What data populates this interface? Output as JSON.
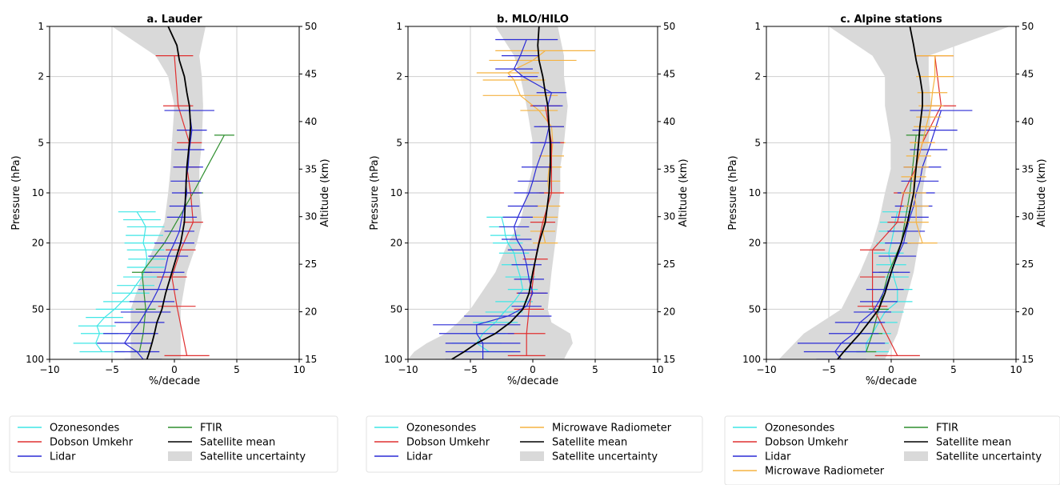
{
  "colors": {
    "Ozonesondes": "#3fe6e6",
    "Dobson Umkehr": "#e03030",
    "Lidar": "#2b2bd6",
    "FTIR": "#2f8f2f",
    "Microwave Radiometer": "#f5b342",
    "Satellite mean": "#000000",
    "Satellite uncertainty": "#d9d9d9"
  },
  "chart_data": [
    {
      "type": "line",
      "title": "a. Lauder",
      "xlabel": "%/decade",
      "ylabel": "Pressure (hPa)",
      "y2label": "Altitude (km)",
      "xlim": [
        -10,
        10
      ],
      "ylim": [
        100,
        1
      ],
      "yscale": "log",
      "xticks": [
        "−10",
        "−5",
        "0",
        "5",
        "10"
      ],
      "yticks": [
        "1",
        "2",
        "5",
        "10",
        "20",
        "50",
        "100"
      ],
      "y2ticks": [
        "50",
        "45",
        "40",
        "35",
        "30",
        "25",
        "20",
        "15"
      ],
      "grid": true,
      "legend": {
        "entries": [
          "Ozonesondes",
          "FTIR",
          "Dobson Umkehr",
          "Satellite mean",
          "Lidar",
          "Satellite uncertainty"
        ],
        "columns": 2,
        "placement": "bottom"
      },
      "uncertainty": {
        "p": [
          1,
          1.5,
          2,
          3,
          5,
          7,
          10,
          15,
          20,
          30,
          50,
          70,
          100
        ],
        "lo": [
          -5,
          -1.5,
          -0.5,
          0,
          -0.2,
          -0.3,
          -0.5,
          -0.8,
          -1.5,
          -2.5,
          -3.5,
          -3.5,
          -3.5
        ],
        "hi": [
          2.5,
          2.0,
          2.2,
          2.3,
          2.2,
          2.0,
          2.0,
          2.2,
          1.8,
          1.0,
          0.5,
          0.5,
          0.5
        ]
      },
      "series": [
        {
          "name": "Ozonesondes",
          "p": [
            13,
            14.5,
            16,
            18,
            20,
            22,
            25,
            28,
            32,
            36,
            40,
            45,
            50,
            56,
            63,
            70,
            80,
            90
          ],
          "x": [
            -3,
            -2.6,
            -2.3,
            -2.4,
            -2.5,
            -2.3,
            -2.2,
            -2.3,
            -2.6,
            -3.1,
            -3.5,
            -4.2,
            -4.8,
            -5.6,
            -6.2,
            -6.0,
            -6.3,
            -5.8
          ],
          "err": [
            1.5,
            1.5,
            1.5,
            1.5,
            1.5,
            1.5,
            1.5,
            1.5,
            1.5,
            1.5,
            1.5,
            1.5,
            1.5,
            1.5,
            1.5,
            1.5,
            1.8,
            1.8
          ]
        },
        {
          "name": "FTIR",
          "p": [
            4.5,
            10,
            20,
            30,
            50,
            70,
            90
          ],
          "x": [
            4.0,
            1.5,
            -0.8,
            -2.6,
            -2.3,
            -2.5,
            -2.8
          ],
          "err": [
            0.8,
            0.8,
            0.8,
            0.8,
            0.8,
            0.8,
            0.8
          ]
        },
        {
          "name": "Dobson Umkehr",
          "p": [
            1.5,
            3,
            5,
            7,
            10,
            15,
            22,
            32,
            48,
            95
          ],
          "x": [
            0,
            0.3,
            1.2,
            1.0,
            1.3,
            1.5,
            0.5,
            -0.2,
            0.2,
            1.0
          ],
          "err": [
            1.5,
            1.2,
            1.0,
            1.0,
            0.8,
            0.8,
            1.2,
            1.2,
            1.5,
            1.8
          ]
        },
        {
          "name": "Lidar",
          "p": [
            3.2,
            4.2,
            5.5,
            7,
            8.5,
            10,
            12,
            14,
            17,
            20,
            24,
            30,
            38,
            45,
            52,
            60,
            70,
            80,
            90,
            100
          ],
          "x": [
            1.2,
            1.4,
            1.2,
            1.1,
            0.9,
            1.0,
            0.8,
            0.6,
            0.4,
            0,
            -0.5,
            -0.8,
            -1.3,
            -1.8,
            -2.3,
            -2.8,
            -3.5,
            -4.0,
            -3.0,
            -2.5
          ],
          "err": [
            2.0,
            1.2,
            1.2,
            1.2,
            1.2,
            1.2,
            1.2,
            1.2,
            1.2,
            1.6,
            1.6,
            1.6,
            1.6,
            1.8,
            2.0,
            2.0,
            2.2,
            2.2,
            1.8,
            1.5
          ]
        },
        {
          "name": "Satellite mean",
          "p": [
            1,
            1.3,
            1.6,
            2,
            2.5,
            3,
            4,
            5,
            7,
            10,
            15,
            20,
            30,
            40,
            50,
            60,
            70,
            80,
            90,
            100
          ],
          "x": [
            -0.5,
            0.2,
            0.4,
            0.8,
            1.0,
            1.2,
            1.3,
            1.2,
            1.0,
            0.9,
            0.8,
            0.5,
            -0.2,
            -0.7,
            -1.0,
            -1.4,
            -1.6,
            -1.8,
            -2.0,
            -2.2
          ],
          "err": []
        }
      ]
    },
    {
      "type": "line",
      "title": "b. MLO/HILO",
      "xlabel": "%/decade",
      "ylabel": "Pressure (hPa)",
      "y2label": "Altitude (km)",
      "xlim": [
        -10,
        10
      ],
      "ylim": [
        100,
        1
      ],
      "yscale": "log",
      "xticks": [
        "−10",
        "−5",
        "0",
        "5",
        "10"
      ],
      "yticks": [
        "1",
        "2",
        "5",
        "10",
        "20",
        "50",
        "100"
      ],
      "y2ticks": [
        "50",
        "45",
        "40",
        "35",
        "30",
        "25",
        "20",
        "15"
      ],
      "grid": true,
      "legend": {
        "entries": [
          "Ozonesondes",
          "Microwave Radiometer",
          "Dobson Umkehr",
          "Satellite mean",
          "Lidar",
          "Satellite uncertainty"
        ],
        "columns": 2,
        "placement": "bottom"
      },
      "uncertainty": {
        "p": [
          1,
          1.5,
          2,
          3,
          5,
          7,
          10,
          15,
          20,
          30,
          50,
          60,
          70,
          80,
          90,
          100
        ],
        "lo": [
          -3,
          -1.5,
          -1.0,
          -0.5,
          0,
          0,
          -0.5,
          -1.0,
          -2.0,
          -3.0,
          -5.0,
          -6.0,
          -7.0,
          -8.5,
          -9.5,
          -10
        ],
        "hi": [
          2.0,
          2.5,
          2.5,
          2.8,
          2.5,
          2.2,
          2.2,
          2.0,
          1.8,
          1.5,
          1.2,
          1.5,
          3.0,
          3.2,
          2.8,
          2.5
        ]
      },
      "series": [
        {
          "name": "Ozonesondes",
          "p": [
            14,
            16,
            18,
            20,
            23,
            27,
            32,
            38,
            45,
            52,
            60,
            70,
            80,
            90
          ],
          "x": [
            -2.5,
            -2.3,
            -2.2,
            -2.0,
            -1.5,
            -1.3,
            -1.0,
            -0.8,
            -1.5,
            -2.3,
            -3.0,
            -4.0,
            -4.5,
            -3.5
          ],
          "err": [
            1.2,
            1.2,
            1.2,
            1.2,
            1.2,
            1.2,
            1.2,
            1.2,
            1.5,
            1.5,
            1.8,
            1.8,
            2.0,
            2.0
          ]
        },
        {
          "name": "Microwave Radiometer",
          "p": [
            1.4,
            1.6,
            1.9,
            2.1,
            2.6,
            3.2,
            4,
            5,
            6,
            7,
            8.5,
            10,
            12,
            14,
            17,
            20
          ],
          "x": [
            1.0,
            0.0,
            -2.0,
            -1.5,
            -1.0,
            0.5,
            1.5,
            1.6,
            1.5,
            1.3,
            1.2,
            1.3,
            1.2,
            1.0,
            0.8,
            1.0
          ],
          "err": [
            4.0,
            3.5,
            2.5,
            2.5,
            3.0,
            1.5,
            1.0,
            1.0,
            1.0,
            1.0,
            1.0,
            1.0,
            1.0,
            1.0,
            1.0,
            1.0
          ]
        },
        {
          "name": "Dobson Umkehr",
          "p": [
            3,
            5,
            10,
            15,
            25,
            40,
            50,
            70,
            95
          ],
          "x": [
            1.0,
            1.5,
            1.5,
            0.8,
            0.2,
            -0.1,
            -0.3,
            -0.5,
            -0.5
          ],
          "err": [
            1.2,
            1.0,
            1.0,
            1.0,
            1.0,
            1.2,
            1.2,
            1.5,
            1.5
          ]
        },
        {
          "name": "Lidar",
          "p": [
            1.2,
            1.5,
            1.8,
            2.0,
            2.5,
            3,
            4,
            5,
            7,
            8.5,
            10,
            12,
            14,
            16,
            19,
            22,
            27,
            33,
            40,
            48,
            55,
            62,
            70,
            80,
            90,
            100
          ],
          "x": [
            -0.5,
            -1.0,
            -1.5,
            -0.8,
            1.5,
            1.2,
            1.3,
            1.0,
            0.3,
            0.0,
            -0.3,
            -0.8,
            -1.2,
            -1.5,
            -1.3,
            -0.8,
            -0.5,
            -0.3,
            0,
            -0.5,
            -2.0,
            -4.5,
            -4.5,
            -4.0,
            -4.0,
            -4.0
          ],
          "err": [
            2.5,
            1.5,
            1.5,
            1.2,
            1.2,
            1.2,
            1.2,
            1.2,
            1.2,
            1.2,
            1.2,
            1.2,
            1.2,
            1.2,
            1.2,
            1.2,
            1.2,
            1.2,
            1.2,
            1.2,
            3.5,
            3.5,
            3.0,
            3.0,
            3.0,
            3.0
          ]
        },
        {
          "name": "Satellite mean",
          "p": [
            1,
            1.3,
            1.6,
            2,
            2.5,
            3,
            4,
            5,
            7,
            10,
            15,
            20,
            30,
            40,
            50,
            60,
            70,
            80,
            90,
            100
          ],
          "x": [
            0.5,
            0.4,
            0.5,
            0.8,
            1.0,
            1.2,
            1.3,
            1.4,
            1.4,
            1.3,
            1.0,
            0.5,
            0.0,
            -0.3,
            -0.8,
            -1.8,
            -3.0,
            -4.5,
            -5.5,
            -6.5
          ],
          "err": []
        }
      ]
    },
    {
      "type": "line",
      "title": "c. Alpine stations",
      "xlabel": "%/decade",
      "ylabel": "Pressure (hPa)",
      "y2label": "Altitude (km)",
      "xlim": [
        -10,
        10
      ],
      "ylim": [
        100,
        1
      ],
      "yscale": "log",
      "xticks": [
        "−10",
        "−5",
        "0",
        "5",
        "10"
      ],
      "yticks": [
        "1",
        "2",
        "5",
        "10",
        "20",
        "50",
        "100"
      ],
      "y2ticks": [
        "50",
        "45",
        "40",
        "35",
        "30",
        "25",
        "20",
        "15"
      ],
      "grid": true,
      "legend": {
        "entries": [
          "Ozonesondes",
          "FTIR",
          "Dobson Umkehr",
          "Satellite mean",
          "Lidar",
          "Satellite uncertainty",
          "Microwave Radiometer"
        ],
        "columns": 2,
        "placement": "bottom"
      },
      "uncertainty": {
        "p": [
          1,
          1.5,
          2,
          3,
          5,
          7,
          10,
          15,
          20,
          30,
          50,
          70,
          100
        ],
        "lo": [
          -5,
          -1.5,
          -0.5,
          -0.5,
          0,
          0,
          -0.5,
          -1.0,
          -1.5,
          -2.5,
          -4.0,
          -7.0,
          -9.0
        ],
        "hi": [
          9.5,
          3.0,
          3.0,
          3.2,
          3.0,
          2.8,
          2.5,
          2.5,
          2.2,
          1.8,
          1.0,
          0.5,
          -0.5
        ]
      },
      "series": [
        {
          "name": "Ozonesondes",
          "p": [
            13,
            15,
            17,
            20,
            23,
            27,
            32,
            38,
            45,
            52,
            60,
            70,
            80,
            90
          ],
          "x": [
            0.5,
            0.3,
            0.2,
            0.0,
            -0.2,
            0.0,
            0.2,
            0.5,
            0.5,
            -0.5,
            -1.0,
            -1.5,
            -2.0,
            -2.0
          ],
          "err": [
            1.2,
            1.2,
            1.2,
            1.2,
            1.2,
            1.2,
            1.2,
            1.2,
            1.2,
            1.5,
            1.5,
            1.5,
            1.8,
            1.8
          ]
        },
        {
          "name": "FTIR",
          "p": [
            4.5,
            10,
            20,
            30,
            50,
            70,
            90
          ],
          "x": [
            2.0,
            1.5,
            0.8,
            -0.2,
            -1.0,
            -1.5,
            -2.0
          ],
          "err": [
            0.8,
            0.8,
            0.8,
            0.8,
            0.8,
            0.8,
            0.8
          ]
        },
        {
          "name": "Dobson Umkehr",
          "p": [
            1.5,
            3,
            5,
            7,
            10,
            15,
            22,
            32,
            48,
            95
          ],
          "x": [
            3.5,
            4.0,
            2.5,
            2.0,
            1.0,
            0.5,
            -1.5,
            -1.5,
            -1.5,
            0.5
          ],
          "err": [
            1.5,
            1.2,
            1.0,
            1.0,
            0.8,
            0.8,
            1.0,
            1.0,
            1.2,
            1.8
          ]
        },
        {
          "name": "Lidar",
          "p": [
            3.2,
            4.2,
            5.5,
            7,
            8.5,
            10,
            12,
            14,
            17,
            20,
            24,
            30,
            38,
            45,
            52,
            60,
            70,
            80,
            90,
            100
          ],
          "x": [
            4.0,
            3.5,
            3.0,
            2.5,
            2.3,
            2.0,
            1.8,
            1.5,
            1.2,
            1.0,
            0.5,
            0.0,
            -0.5,
            -1.0,
            -1.5,
            -2.5,
            -3.0,
            -4.0,
            -4.5,
            -4.0
          ],
          "err": [
            2.5,
            1.8,
            1.5,
            1.5,
            1.5,
            1.5,
            1.5,
            1.5,
            1.5,
            1.5,
            1.5,
            1.5,
            1.5,
            1.5,
            1.5,
            2.0,
            2.0,
            3.5,
            2.5,
            2.0
          ]
        },
        {
          "name": "Microwave Radiometer",
          "p": [
            1.5,
            2,
            2.5,
            3,
            3.5,
            4,
            5,
            6,
            7,
            8,
            10,
            12,
            15,
            20
          ],
          "x": [
            3.5,
            3.5,
            3.3,
            3.2,
            3.0,
            2.8,
            2.5,
            2.2,
            2.0,
            1.8,
            1.8,
            2.0,
            2.0,
            2.5
          ],
          "err": [
            1.5,
            1.5,
            1.2,
            1.0,
            1.0,
            1.0,
            1.0,
            1.0,
            1.0,
            1.0,
            1.0,
            1.0,
            1.0,
            1.2
          ]
        },
        {
          "name": "Satellite mean",
          "p": [
            1,
            1.3,
            1.6,
            2,
            2.5,
            3,
            4,
            5,
            7,
            10,
            15,
            20,
            30,
            40,
            50,
            60,
            70,
            80,
            90,
            100
          ],
          "x": [
            1.5,
            1.8,
            2.0,
            2.3,
            2.5,
            2.5,
            2.3,
            2.2,
            2.0,
            1.8,
            1.3,
            0.8,
            0.0,
            -0.5,
            -1.0,
            -1.8,
            -2.5,
            -3.2,
            -3.8,
            -4.3
          ],
          "err": []
        }
      ]
    }
  ]
}
